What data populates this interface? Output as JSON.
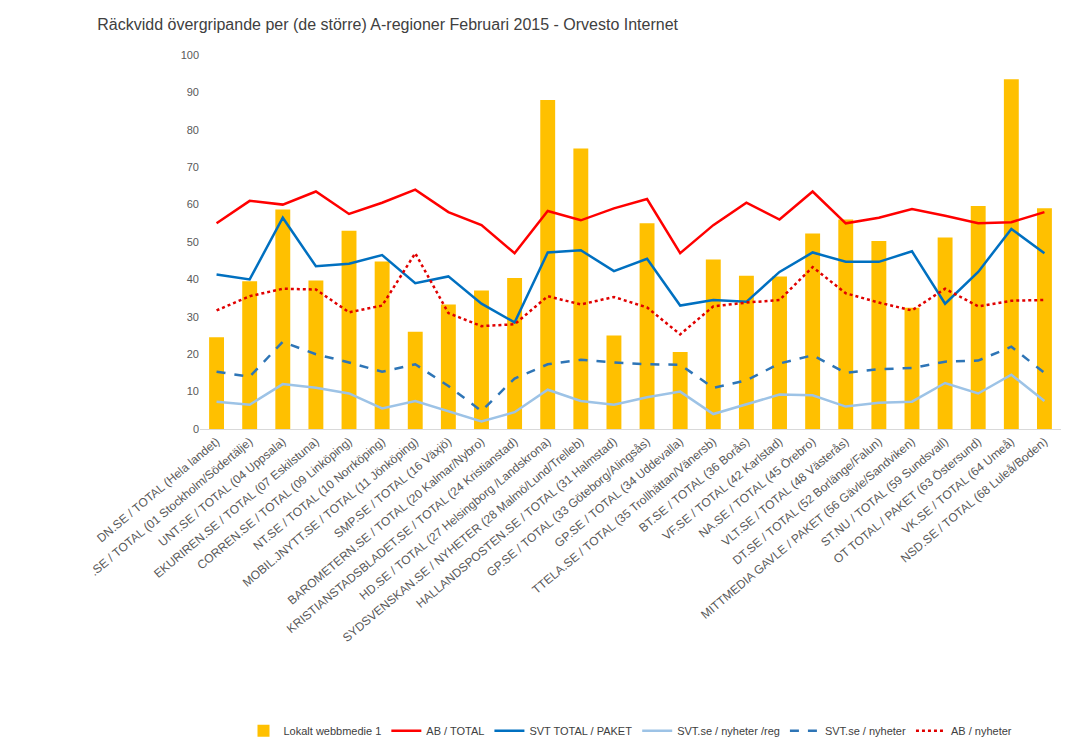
{
  "chart_data": {
    "type": "bar",
    "title": "Räckvidd övergripande per (de större) A-regioner Februari 2015 - Orvesto Internet",
    "categories": [
      "DN.SE / TOTAL (Hela landet)",
      ".SE / TOTAL (01 Stockholm/Södertälje)",
      "UNT.SE / TOTAL (04 Uppsala)",
      "EKURIREN.SE / TOTAL (07 Eskilstuna)",
      "CORREN.SE / TOTAL (09 Linköping)",
      "NT.SE / TOTAL (10 Norrköping)",
      "MOBIL.JNYTT.SE / TOTAL (11 Jönköping)",
      "SMP.SE / TOTAL (16 Växjö)",
      "BAROMETERN.SE / TOTAL (20 Kalmar/Nybro)",
      "KRISTIANSTADSBLADET.SE / TOTAL (24 Kristianstad)",
      "HD.SE / TOTAL (27 Helsingborg /Landskrona)",
      "SYDSVENSKAN.SE / NYHETER (28 Malmö/Lund/Trelleb)",
      "HALLANDSPOSTEN.SE / TOTAL (31 Halmstad)",
      "GP.SE / TOTAL (33 Göteborg/Alingsås)",
      "GP.SE / TOTAL (34 Uddevalla)",
      "TTELA.SE / TOTAL (35 Trollhättan/Vänersb)",
      "BT.SE / TOTAL (36 Borås)",
      "VF.SE / TOTAL (42 Karlstad)",
      "NA.SE / TOTAL (45 Örebro)",
      "VLT.SE / TOTAL (48 Västerås)",
      "DT.SE / TOTAL (52 Borlänge/Falun)",
      "MITTMEDIA GAVLE / PAKET (56 Gävle/Sandviken)",
      "ST.NU / TOTAL (59 Sundsvall)",
      "OT TOTAL / PAKET (63 Östersund)",
      "VK.SE / TOTAL (64 Umeå)",
      "NSD.SE / TOTAL (68 Luleå/Boden)"
    ],
    "series": [
      {
        "name": "Lokalt webbmedie 1",
        "type": "bar",
        "color": "#FFC000",
        "values": [
          24.5,
          39.5,
          58.7,
          39.7,
          53,
          44.8,
          26,
          33.3,
          37,
          40.4,
          88,
          75,
          25,
          55,
          20.6,
          45.3,
          41,
          40.8,
          52.3,
          56,
          50.3,
          32.4,
          51.2,
          59.6,
          93.5,
          59
        ]
      },
      {
        "name": "AB / TOTAL",
        "type": "line",
        "color": "#FF0000",
        "line_style": "solid",
        "values": [
          55,
          61,
          60,
          63.5,
          57.5,
          60.5,
          64,
          58,
          54.5,
          47,
          58.3,
          55.8,
          59,
          61.5,
          47,
          54.5,
          60.5,
          56,
          63.5,
          55,
          56.5,
          58.8,
          57,
          55,
          55.3,
          58
        ]
      },
      {
        "name": "SVT TOTAL / PAKET",
        "type": "line",
        "color": "#0070C0",
        "line_style": "solid",
        "values": [
          41.3,
          40,
          56.5,
          43.5,
          44.2,
          46.5,
          39,
          40.8,
          33.5,
          28.5,
          47.2,
          47.8,
          42.2,
          45.5,
          33,
          34.5,
          34,
          42,
          47.2,
          44.7,
          44.7,
          47.5,
          33.5,
          42,
          53.5,
          47
        ]
      },
      {
        "name": "SVT.se / nyheter /reg",
        "type": "line",
        "color": "#9DC3E6",
        "line_style": "solid",
        "values": [
          7.3,
          6.5,
          12,
          11,
          9.5,
          5.5,
          7.5,
          4.8,
          2,
          4.5,
          10.5,
          7.5,
          6.5,
          8.5,
          10,
          4,
          6.5,
          9.2,
          9,
          6,
          7,
          7.3,
          12.3,
          9.5,
          14.5,
          7.5
        ]
      },
      {
        "name": "SVT.se / nyheter",
        "type": "line",
        "color": "#2E75B6",
        "line_style": "dash",
        "values": [
          15.3,
          14,
          23.3,
          20,
          17.8,
          15.3,
          17.3,
          11.5,
          4.8,
          13.5,
          17.3,
          18.5,
          17.8,
          17.3,
          17.2,
          11,
          13,
          17.5,
          19.7,
          15,
          16,
          16.3,
          18,
          18.3,
          22,
          15
        ]
      },
      {
        "name": "AB / nyheter",
        "type": "line",
        "color": "#E00000",
        "line_style": "dot",
        "values": [
          31.7,
          35.5,
          37.5,
          37.3,
          31.2,
          33,
          47,
          31,
          27.5,
          28,
          35.5,
          33.3,
          35.3,
          32.5,
          25.3,
          32.8,
          33.8,
          34.5,
          43.3,
          36.3,
          33.8,
          31.7,
          37.5,
          32.8,
          34.3,
          34.5
        ]
      }
    ],
    "ylim": [
      0,
      100
    ],
    "yticks": [
      0,
      10,
      20,
      30,
      40,
      50,
      60,
      70,
      80,
      90,
      100
    ],
    "grid": false,
    "legend": "bottom"
  }
}
